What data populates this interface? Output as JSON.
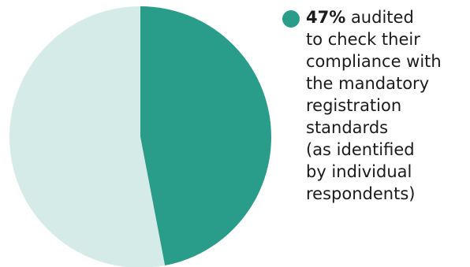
{
  "chart_data": {
    "type": "pie",
    "slices": [
      {
        "label": "audited",
        "value": 47,
        "color": "#2a9c8a"
      },
      {
        "label": "",
        "value": 53,
        "color": "#d5ebe8"
      }
    ]
  },
  "legend": {
    "percent": "47%",
    "text": " audited\nto check their\ncompliance with\nthe mandatory\nregistration\nstandards\n(as identified\nby individual\nrespondents)",
    "dot_color": "#2a9c8a"
  }
}
